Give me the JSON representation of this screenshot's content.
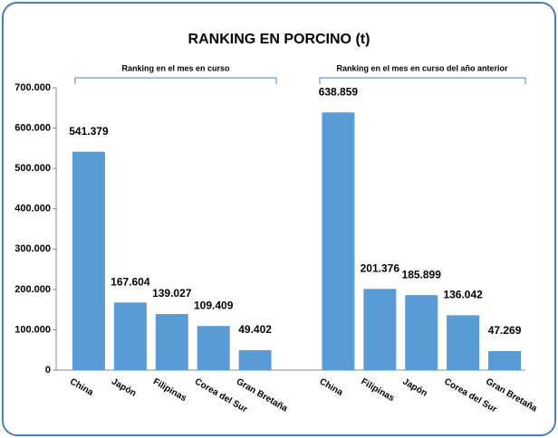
{
  "chart_data": {
    "type": "bar",
    "title": "RANKING EN PORCINO (t)",
    "annotations": [
      "Ranking en el mes en curso",
      "Ranking en el mes en curso del año anterior"
    ],
    "categories": [
      "China",
      "Japón",
      "Filipinas",
      "Corea del Sur",
      "Gran Bretaña",
      null,
      "China",
      "Filipinas",
      "Japón",
      "Corea del Sur",
      "Gran Bretaña"
    ],
    "values": [
      541379,
      167604,
      139027,
      109409,
      49402,
      null,
      638859,
      201376,
      185899,
      136042,
      47269
    ],
    "value_labels": [
      "541.379",
      "167.604",
      "139.027",
      "109.409",
      "49.402",
      null,
      "638.859",
      "201.376",
      "185.899",
      "136.042",
      "47.269"
    ],
    "color": "#5b9bd5",
    "ylim": [
      0,
      700000
    ],
    "yticks": [
      0,
      {
        "value": 100000,
        "label": "100.000"
      },
      {
        "value": 200000,
        "label": "200.000"
      },
      {
        "value": 300000,
        "label": "300.000"
      },
      {
        "value": 400000,
        "label": "400.000"
      },
      {
        "value": 500000,
        "label": "500.000"
      },
      {
        "value": 600000,
        "label": "600.000"
      },
      {
        "value": 700000,
        "label": "700.000"
      }
    ],
    "grid": false
  }
}
